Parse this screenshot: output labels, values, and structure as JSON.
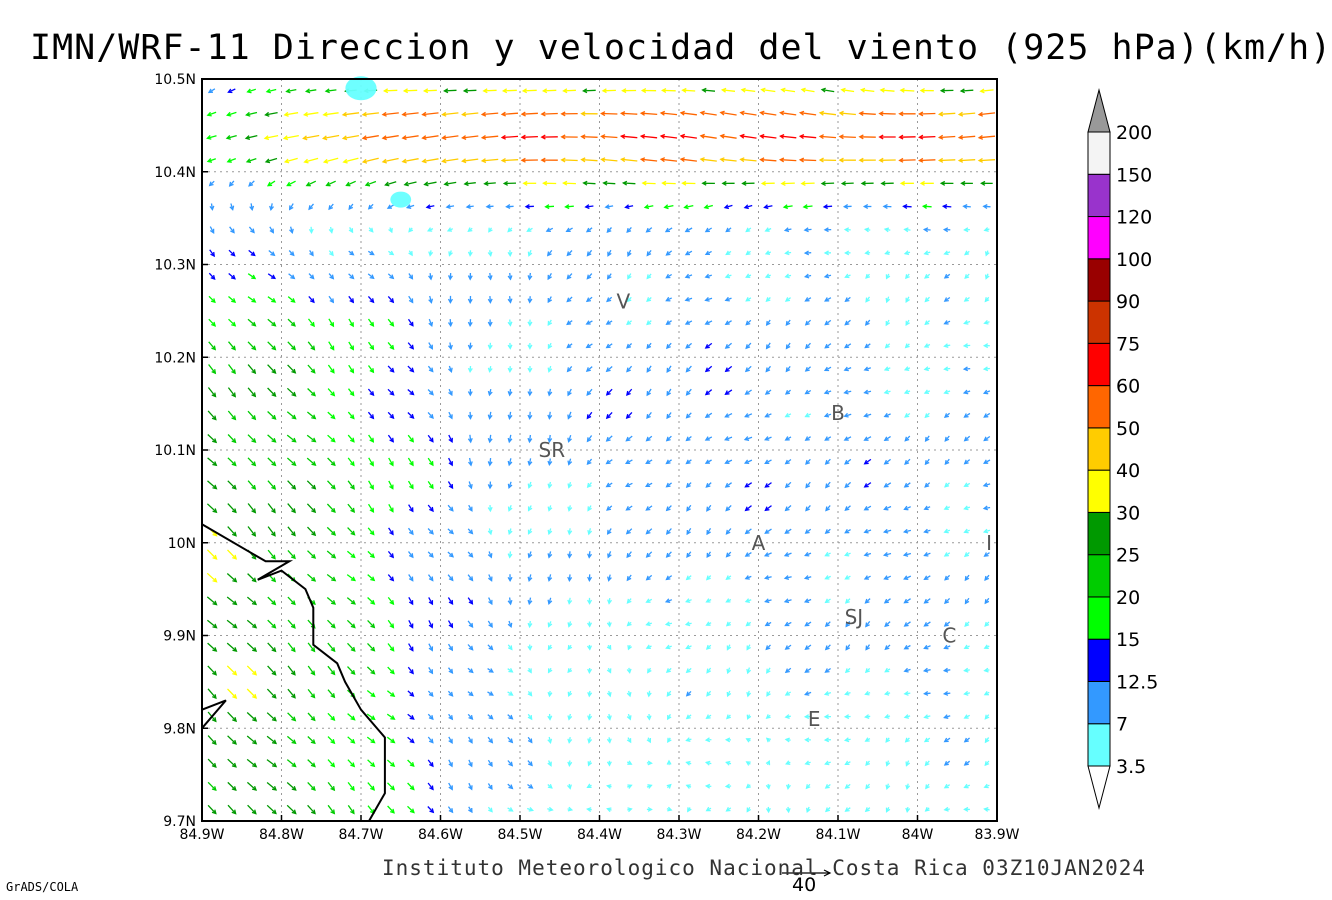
{
  "title": "IMN/WRF-11 Direccion y velocidad del viento (925 hPa)(km/h)",
  "footer": "Instituto Meteorologico Nacional Costa Rica 03Z10JAN2024",
  "credit": "GrADS/COLA",
  "reference_vector": {
    "label": "40",
    "value": 40
  },
  "map": {
    "lon_range": [
      -84.9,
      -83.9
    ],
    "lat_range": [
      9.7,
      10.5
    ],
    "x_ticks": [
      "84.9W",
      "84.8W",
      "84.7W",
      "84.6W",
      "84.5W",
      "84.4W",
      "84.3W",
      "84.2W",
      "84.1W",
      "84W",
      "83.9W"
    ],
    "y_ticks": [
      "9.7N",
      "9.8N",
      "9.9N",
      "10N",
      "10.1N",
      "10.2N",
      "10.3N",
      "10.4N",
      "10.5N"
    ],
    "grid": true,
    "places": [
      {
        "label": "V",
        "lon": -84.37,
        "lat": 10.26
      },
      {
        "label": "B",
        "lon": -84.1,
        "lat": 10.14
      },
      {
        "label": "SR",
        "lon": -84.46,
        "lat": 10.1
      },
      {
        "label": "A",
        "lon": -84.2,
        "lat": 10.0
      },
      {
        "label": "I",
        "lon": -83.91,
        "lat": 10.0
      },
      {
        "label": "SJ",
        "lon": -84.08,
        "lat": 9.92
      },
      {
        "label": "C",
        "lon": -83.96,
        "lat": 9.9
      },
      {
        "label": "E",
        "lon": -84.13,
        "lat": 9.81
      }
    ],
    "coastline": [
      [
        -84.9,
        10.02
      ],
      [
        -84.82,
        9.98
      ],
      [
        -84.79,
        9.98
      ],
      [
        -84.83,
        9.96
      ],
      [
        -84.8,
        9.97
      ],
      [
        -84.77,
        9.95
      ],
      [
        -84.76,
        9.93
      ],
      [
        -84.76,
        9.89
      ],
      [
        -84.73,
        9.87
      ],
      [
        -84.72,
        9.85
      ],
      [
        -84.7,
        9.82
      ],
      [
        -84.67,
        9.79
      ],
      [
        -84.67,
        9.73
      ],
      [
        -84.69,
        9.7
      ]
    ],
    "coastline2": [
      [
        -84.9,
        9.8
      ],
      [
        -84.87,
        9.83
      ],
      [
        -84.9,
        9.82
      ]
    ],
    "high_speed_blobs": [
      {
        "lon": -84.7,
        "lat": 10.49,
        "color": "#66ffff"
      },
      {
        "lon": -84.65,
        "lat": 10.37,
        "color": "#66ffff"
      }
    ]
  },
  "colorbar": {
    "colors": [
      "#66ffff",
      "#3399ff",
      "#0000ff",
      "#00ff00",
      "#00cc00",
      "#009900",
      "#ffff00",
      "#ffcc00",
      "#ff6600",
      "#ff0000",
      "#cc3300",
      "#990000",
      "#ff00ff",
      "#9933cc",
      "#f4f4f4"
    ],
    "labels": [
      "3.5",
      "7",
      "12.5",
      "15",
      "20",
      "25",
      "30",
      "40",
      "50",
      "60",
      "75",
      "90",
      "100",
      "120",
      "150",
      "200"
    ],
    "top_arrow_color": "#999999",
    "bottom_arrow_color": "#ffffff"
  }
}
